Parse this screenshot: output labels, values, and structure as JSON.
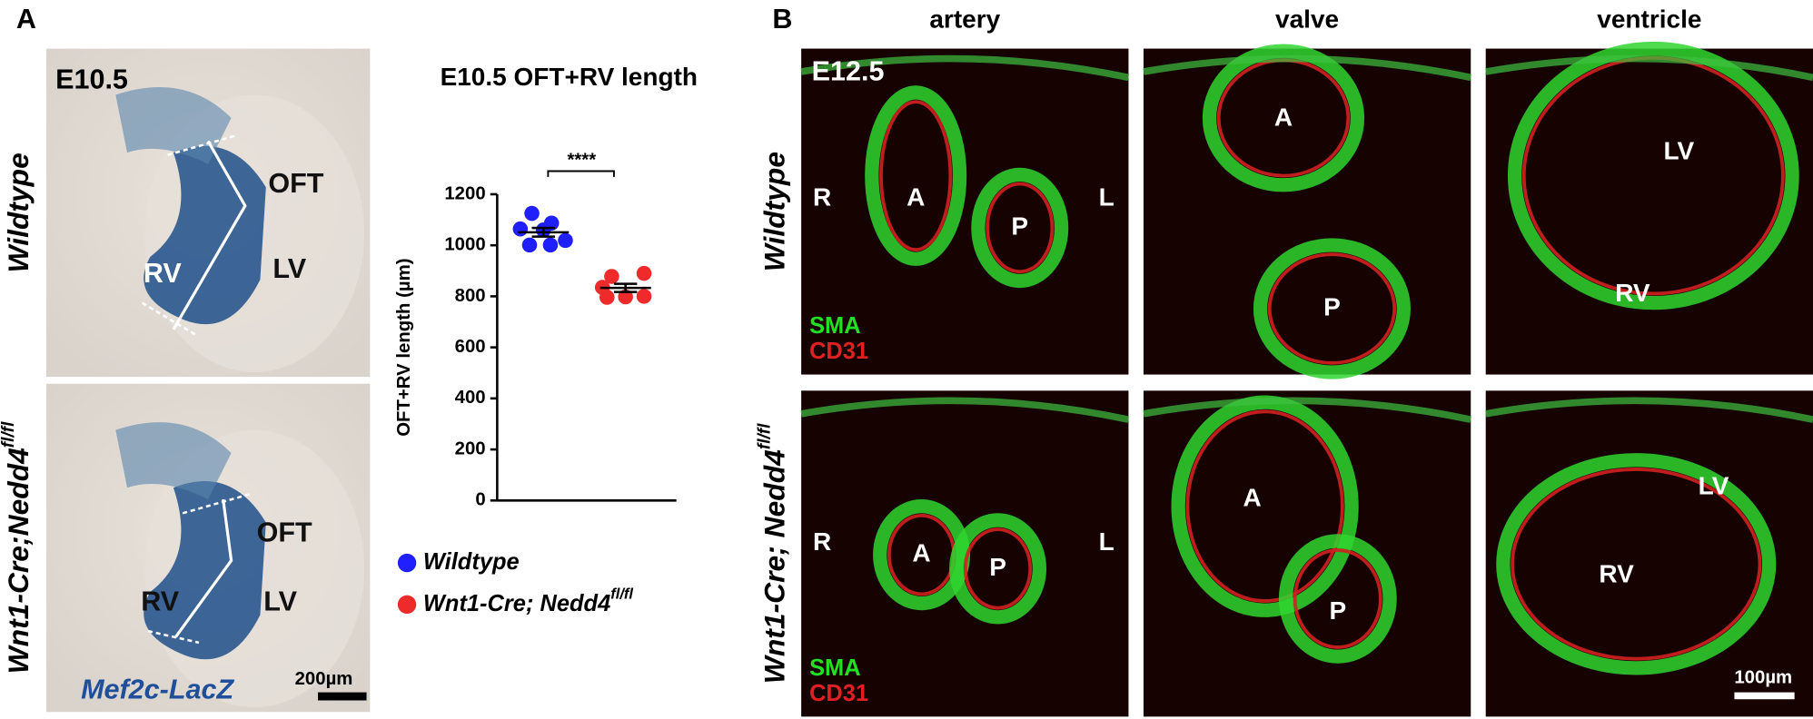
{
  "panel_a": {
    "label": "A",
    "stage": "E10.5",
    "rows": [
      {
        "genotype": "Wildtype",
        "labels": [
          "OFT",
          "RV",
          "LV"
        ]
      },
      {
        "genotype": "Wnt1-Cre;Nedd4",
        "superscript": "fl/fl",
        "labels": [
          "OFT",
          "RV",
          "LV"
        ]
      }
    ],
    "stain": "Mef2c-LacZ",
    "scale_bar": "200µm"
  },
  "chart_data": {
    "type": "dot",
    "title": "E10.5 OFT+RV length",
    "ylabel": "OFT+RV length (µm)",
    "ylim": [
      0,
      1200
    ],
    "yticks": [
      0,
      200,
      400,
      600,
      800,
      1000,
      1200
    ],
    "annotation": "****",
    "series": [
      {
        "name": "Wildtype",
        "color": "#1f1fff",
        "values": [
          1125,
          1087,
          1064,
          1060,
          1019,
          1001,
          1001
        ],
        "mean": 1051,
        "sem": 17
      },
      {
        "name": "Wnt1-Cre; Nedd4",
        "superscript": "fl/fl",
        "color": "#ee2a2a",
        "values": [
          878,
          890,
          835,
          800,
          798,
          796
        ],
        "mean": 833,
        "sem": 16
      }
    ]
  },
  "panel_b": {
    "label": "B",
    "columns": [
      "artery",
      "valve",
      "ventricle"
    ],
    "stage": "E12.5",
    "rows": [
      {
        "genotype": "Wildtype"
      },
      {
        "genotype": "Wnt1-Cre; Nedd4",
        "superscript": "fl/fl"
      }
    ],
    "images": [
      [
        {
          "labels": [
            "R",
            "A",
            "P",
            "L"
          ]
        },
        {
          "labels": [
            "A",
            "P"
          ]
        },
        {
          "labels": [
            "LV",
            "RV"
          ]
        }
      ],
      [
        {
          "labels": [
            "R",
            "A",
            "P",
            "L"
          ]
        },
        {
          "labels": [
            "A",
            "P"
          ]
        },
        {
          "labels": [
            "LV",
            "RV"
          ]
        }
      ]
    ],
    "stains": [
      "SMA",
      "CD31"
    ],
    "scale_bar": "100µm"
  }
}
